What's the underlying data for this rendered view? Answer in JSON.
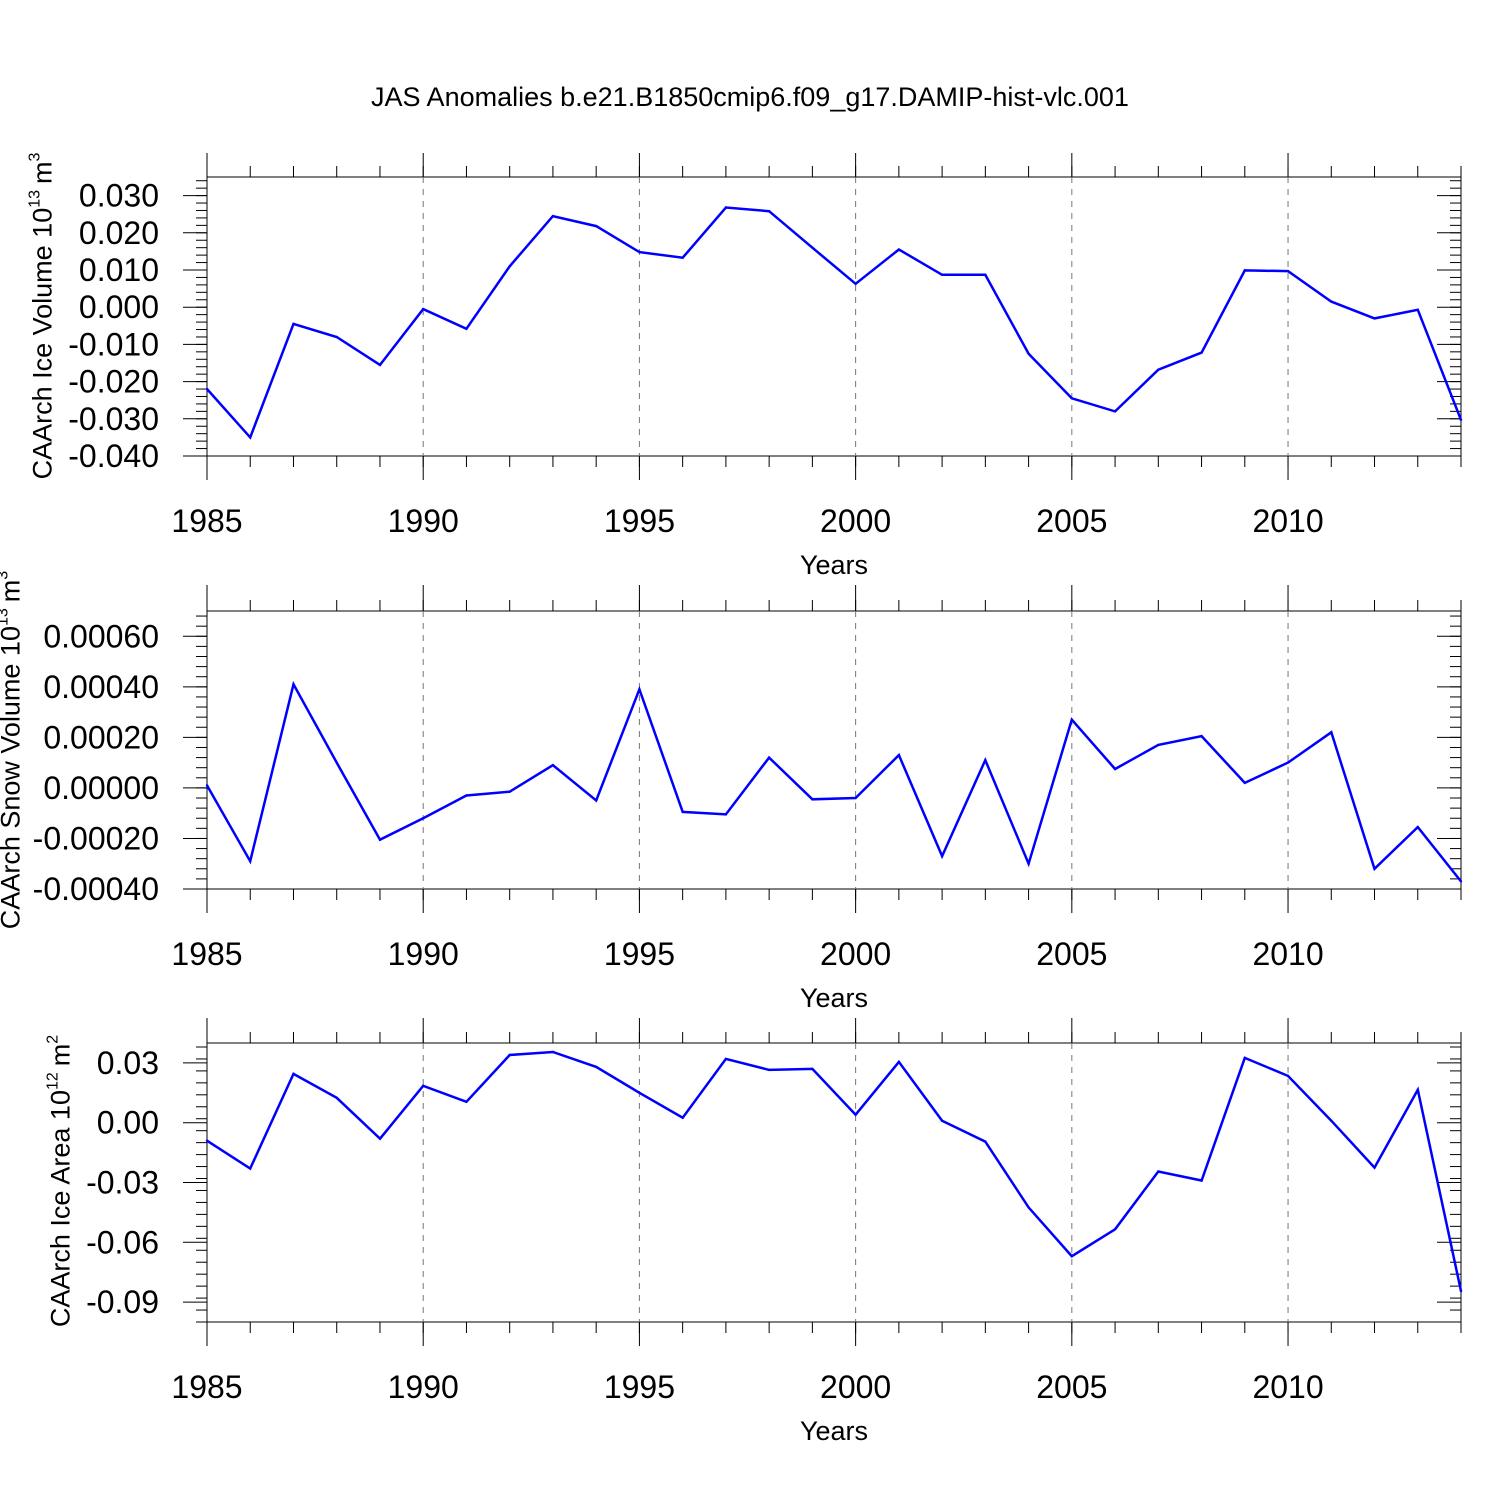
{
  "chart_data": [
    {
      "type": "line",
      "title": "JAS Anomalies b.e21.B1850cmip6.f09_g17.DAMIP-hist-vlc.001",
      "xlabel": "Years",
      "ylabel": "CAArch Ice Volume 10",
      "ylabel_exponent": "13",
      "ylabel_unit": "m",
      "ylabel_unit_exponent": "3",
      "xlim": [
        1985,
        2014
      ],
      "ylim": [
        -0.04,
        0.035
      ],
      "xticks": [
        "1985",
        "1990",
        "1995",
        "2000",
        "2005",
        "2010"
      ],
      "yticks": [
        "0.030",
        "0.020",
        "0.010",
        "0.000",
        "-0.010",
        "-0.020",
        "-0.030",
        "-0.040"
      ],
      "ytick_values": [
        0.03,
        0.02,
        0.01,
        0.0,
        -0.01,
        -0.02,
        -0.03,
        -0.04
      ],
      "grid": "dashed vertical at major x ticks",
      "line_color": "#0000ff",
      "x": [
        1985,
        1986,
        1987,
        1988,
        1989,
        1990,
        1991,
        1992,
        1993,
        1994,
        1995,
        1996,
        1997,
        1998,
        1999,
        2000,
        2001,
        2002,
        2003,
        2004,
        2005,
        2006,
        2007,
        2008,
        2009,
        2010,
        2011,
        2012,
        2013,
        2014
      ],
      "values": [
        -0.022,
        -0.035,
        -0.0045,
        -0.008,
        -0.0155,
        -0.0005,
        -0.0058,
        0.011,
        0.0245,
        0.0218,
        0.0148,
        0.0133,
        0.0268,
        0.0258,
        0.016,
        0.0063,
        0.0155,
        0.0087,
        0.0087,
        -0.0125,
        -0.0245,
        -0.028,
        -0.0168,
        -0.0122,
        0.0099,
        0.0097,
        0.0015,
        -0.003,
        -0.0007,
        -0.0303
      ]
    },
    {
      "type": "line",
      "xlabel": "Years",
      "ylabel": "CAArch Snow Volume 10",
      "ylabel_exponent": "13",
      "ylabel_unit": "m",
      "ylabel_unit_exponent": "3",
      "xlim": [
        1985,
        2014
      ],
      "ylim": [
        -0.0004,
        0.0007
      ],
      "xticks": [
        "1985",
        "1990",
        "1995",
        "2000",
        "2005",
        "2010"
      ],
      "yticks": [
        "0.00060",
        "0.00040",
        "0.00020",
        "0.00000",
        "-0.00020",
        "-0.00040"
      ],
      "ytick_values": [
        0.0006,
        0.0004,
        0.0002,
        0.0,
        -0.0002,
        -0.0004
      ],
      "grid": "dashed vertical at major x ticks",
      "line_color": "#0000ff",
      "x": [
        1985,
        1986,
        1987,
        1988,
        1989,
        1990,
        1991,
        1992,
        1993,
        1994,
        1995,
        1996,
        1997,
        1998,
        1999,
        2000,
        2001,
        2002,
        2003,
        2004,
        2005,
        2006,
        2007,
        2008,
        2009,
        2010,
        2011,
        2012,
        2013,
        2014
      ],
      "values": [
        1e-05,
        -0.00029,
        0.00041,
        0.0001,
        -0.000205,
        -0.00012,
        -3e-05,
        -1.5e-05,
        9e-05,
        -5e-05,
        0.00039,
        -9.5e-05,
        -0.000105,
        0.00012,
        -4.5e-05,
        -4e-05,
        0.00013,
        -0.00027,
        0.00011,
        -0.0003,
        0.00027,
        7.5e-05,
        0.00017,
        0.000205,
        2e-05,
        0.0001,
        0.00022,
        -0.00032,
        -0.000155,
        -0.00037
      ]
    },
    {
      "type": "line",
      "xlabel": "Years",
      "ylabel": "CAArch Ice Area 10",
      "ylabel_exponent": "12",
      "ylabel_unit": "m",
      "ylabel_unit_exponent": "2",
      "xlim": [
        1985,
        2014
      ],
      "ylim": [
        -0.1,
        0.04
      ],
      "xticks": [
        "1985",
        "1990",
        "1995",
        "2000",
        "2005",
        "2010"
      ],
      "yticks": [
        "0.03",
        "0.00",
        "-0.03",
        "-0.06",
        "-0.09"
      ],
      "ytick_values": [
        0.03,
        0.0,
        -0.03,
        -0.06,
        -0.09
      ],
      "grid": "dashed vertical at major x ticks",
      "line_color": "#0000ff",
      "x": [
        1985,
        1986,
        1987,
        1988,
        1989,
        1990,
        1991,
        1992,
        1993,
        1994,
        1995,
        1996,
        1997,
        1998,
        1999,
        2000,
        2001,
        2002,
        2003,
        2004,
        2005,
        2006,
        2007,
        2008,
        2009,
        2010,
        2011,
        2012,
        2013,
        2014
      ],
      "values": [
        -0.009,
        -0.023,
        0.0245,
        0.0125,
        -0.008,
        0.0185,
        0.0105,
        0.034,
        0.0355,
        0.028,
        0.015,
        0.0025,
        0.032,
        0.0265,
        0.027,
        0.004,
        0.0305,
        0.001,
        -0.0095,
        -0.0425,
        -0.067,
        -0.0535,
        -0.0245,
        -0.029,
        0.0325,
        0.0235,
        0.001,
        -0.0225,
        0.0165,
        -0.0845
      ]
    }
  ]
}
